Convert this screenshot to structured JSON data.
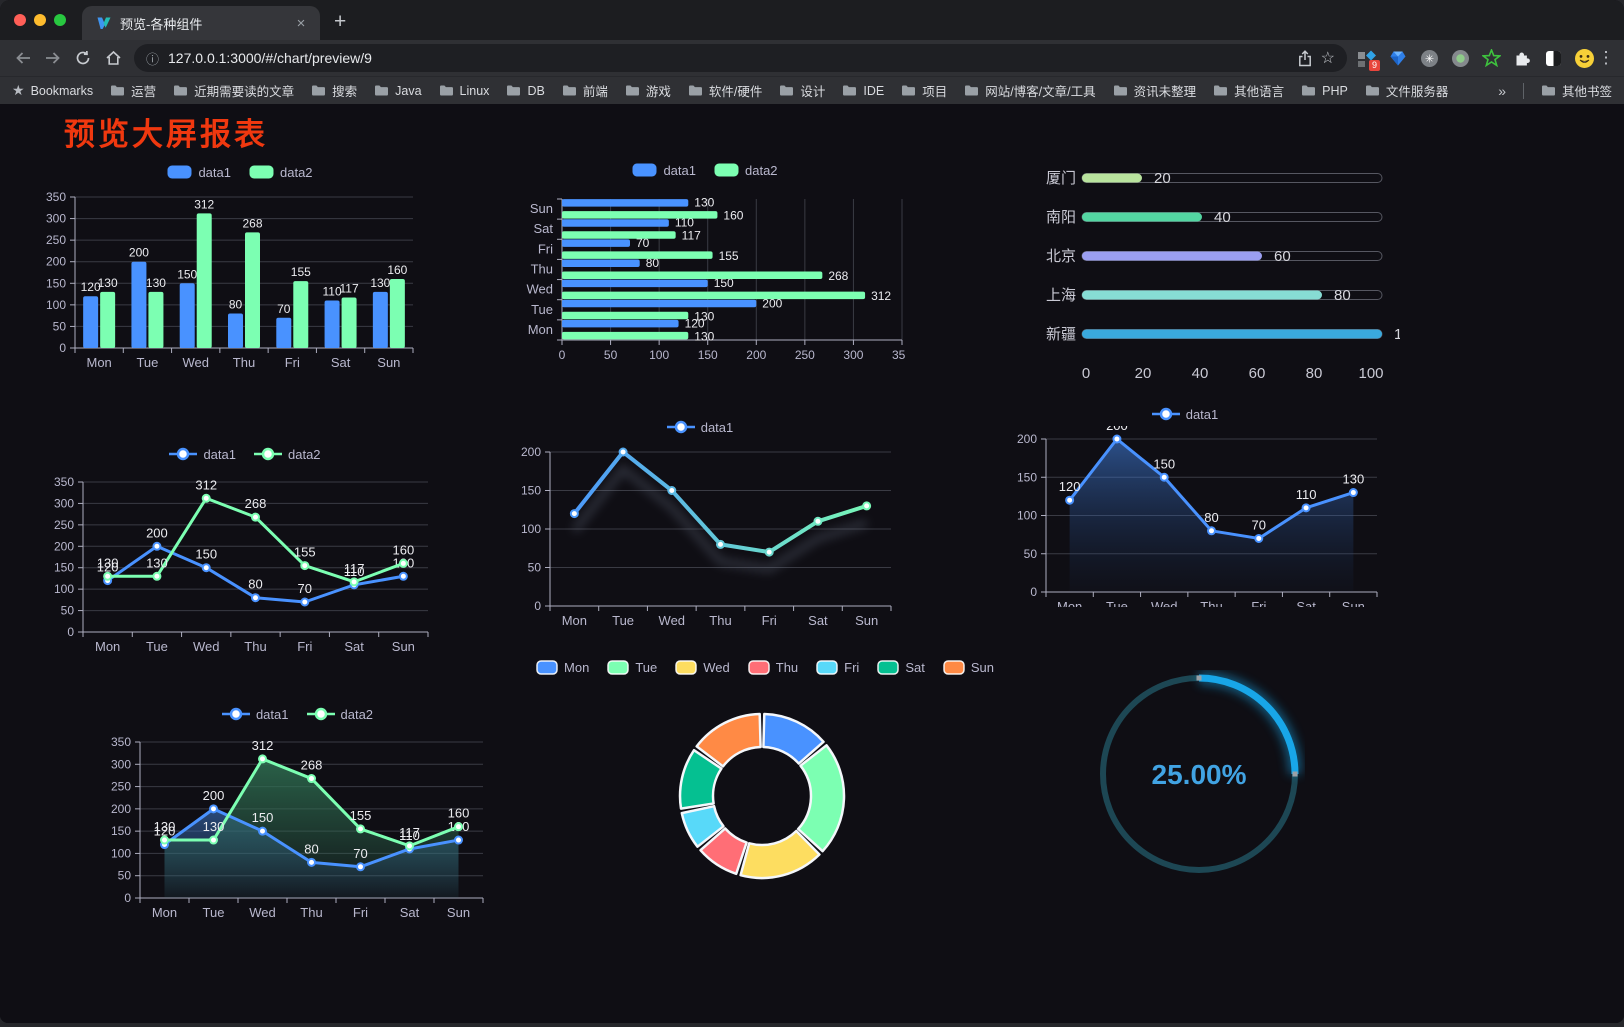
{
  "browser": {
    "traffic_lights": [
      "#ff5f57",
      "#febc2e",
      "#28c840"
    ],
    "tab": {
      "title": "预览-各种组件",
      "close_label": "×",
      "new_tab_label": "+"
    },
    "url": "127.0.0.1:3000/#/chart/preview/9",
    "bookmarks_label": "Bookmarks",
    "bookmarks": [
      "运营",
      "近期需要读的文章",
      "搜索",
      "Java",
      "Linux",
      "DB",
      "前端",
      "游戏",
      "软件/硬件",
      "设计",
      "IDE",
      "项目",
      "网站/博客/文章/工具",
      "资讯未整理",
      "其他语言",
      "PHP",
      "文件服务器"
    ],
    "bookmarks_overflow": "»",
    "other_bookmarks": "其他书签",
    "extensions": [
      {
        "name": "squares-diamond-icon",
        "badge": "9"
      },
      {
        "name": "blue-gem-icon"
      },
      {
        "name": "gray-knot-icon"
      },
      {
        "name": "record-dot-icon"
      },
      {
        "name": "green-star-icon"
      },
      {
        "name": "puzzle-icon"
      },
      {
        "name": "contrast-square-icon"
      },
      {
        "name": "avatar-emoji-icon"
      }
    ]
  },
  "page": {
    "title": "预览大屏报表",
    "title_color": "#f0380f",
    "background": "#0f0e14"
  },
  "chart_data": [
    {
      "id": "bar-vertical",
      "type": "bar",
      "categories": [
        "Mon",
        "Tue",
        "Wed",
        "Thu",
        "Fri",
        "Sat",
        "Sun"
      ],
      "series": [
        {
          "name": "data1",
          "color": "#4992ff",
          "values": [
            120,
            200,
            150,
            80,
            70,
            110,
            130
          ]
        },
        {
          "name": "data2",
          "color": "#7cffb2",
          "values": [
            130,
            130,
            312,
            268,
            155,
            117,
            160
          ]
        }
      ],
      "ylim": [
        0,
        350
      ],
      "ytick_step": 50,
      "value_labels": true,
      "legend_icon": "bar",
      "grid": true
    },
    {
      "id": "bar-horizontal",
      "type": "bar-h",
      "categories": [
        "Mon",
        "Tue",
        "Wed",
        "Thu",
        "Fri",
        "Sat",
        "Sun"
      ],
      "series": [
        {
          "name": "data1",
          "color": "#4992ff",
          "values": [
            120,
            200,
            150,
            80,
            70,
            110,
            130
          ]
        },
        {
          "name": "data2",
          "color": "#7cffb2",
          "values": [
            130,
            130,
            312,
            268,
            155,
            117,
            160
          ]
        }
      ],
      "xlim": [
        0,
        350
      ],
      "xtick_step": 50,
      "value_labels": true,
      "legend_icon": "bar",
      "grid": true
    },
    {
      "id": "progress-bars",
      "type": "progress",
      "rows": [
        {
          "label": "厦门",
          "value": 20,
          "color": "#b9e39e"
        },
        {
          "label": "南阳",
          "value": 40,
          "color": "#53d6a2"
        },
        {
          "label": "北京",
          "value": 60,
          "color": "#9b9ff2"
        },
        {
          "label": "上海",
          "value": 80,
          "color": "#87dcd4"
        },
        {
          "label": "新疆",
          "value": 100,
          "color": "#3aa9dd"
        }
      ],
      "xlim": [
        0,
        100
      ],
      "xticks": [
        0,
        20,
        40,
        60,
        80,
        100
      ]
    },
    {
      "id": "line-basic",
      "type": "line",
      "categories": [
        "Mon",
        "Tue",
        "Wed",
        "Thu",
        "Fri",
        "Sat",
        "Sun"
      ],
      "series": [
        {
          "name": "data1",
          "color": "#4992ff",
          "values": [
            120,
            200,
            150,
            80,
            70,
            110,
            130
          ]
        },
        {
          "name": "data2",
          "color": "#7cffb2",
          "values": [
            130,
            130,
            312,
            268,
            155,
            117,
            160
          ]
        }
      ],
      "ylim": [
        0,
        350
      ],
      "ytick_step": 50,
      "value_labels": true,
      "legend_icon": "line",
      "grid": true
    },
    {
      "id": "line-gradient",
      "type": "line",
      "categories": [
        "Mon",
        "Tue",
        "Wed",
        "Thu",
        "Fri",
        "Sat",
        "Sun"
      ],
      "series": [
        {
          "name": "data1",
          "color": "#4992ff",
          "values": [
            120,
            200,
            150,
            80,
            70,
            110,
            130
          ]
        }
      ],
      "ylim": [
        0,
        200
      ],
      "ytick_step": 50,
      "value_labels": false,
      "line_gradient": [
        "#4992ff",
        "#7cffb2"
      ],
      "shadow": true,
      "legend_icon": "line",
      "grid": true
    },
    {
      "id": "line-area",
      "type": "line",
      "categories": [
        "Mon",
        "Tue",
        "Wed",
        "Thu",
        "Fri",
        "Sat",
        "Sun"
      ],
      "series": [
        {
          "name": "data1",
          "color": "#4992ff",
          "values": [
            120,
            200,
            150,
            80,
            70,
            110,
            130
          ],
          "area": {
            "from": "rgba(73,146,255,0.50)",
            "to": "rgba(30,60,110,0.05)"
          }
        }
      ],
      "ylim": [
        0,
        200
      ],
      "ytick_step": 50,
      "value_labels": true,
      "legend_icon": "line",
      "grid": true
    },
    {
      "id": "line-area-double",
      "type": "line",
      "categories": [
        "Mon",
        "Tue",
        "Wed",
        "Thu",
        "Fri",
        "Sat",
        "Sun"
      ],
      "series": [
        {
          "name": "data1",
          "color": "#4992ff",
          "values": [
            120,
            200,
            150,
            80,
            70,
            110,
            130
          ],
          "area": {
            "from": "rgba(55,105,175,0.65)",
            "to": "rgba(55,105,175,0.05)"
          }
        },
        {
          "name": "data2",
          "color": "#7cffb2",
          "values": [
            130,
            130,
            312,
            268,
            155,
            117,
            160
          ],
          "area": {
            "from": "rgba(47,112,82,0.85)",
            "to": "rgba(47,112,82,0.06)"
          }
        }
      ],
      "ylim": [
        0,
        350
      ],
      "ytick_step": 50,
      "value_labels": true,
      "legend_icon": "line",
      "grid": true
    },
    {
      "id": "donut",
      "type": "pie",
      "items": [
        {
          "label": "Mon",
          "value": 120,
          "color": "#4992ff"
        },
        {
          "label": "Tue",
          "value": 200,
          "color": "#7cffb2"
        },
        {
          "label": "Wed",
          "value": 150,
          "color": "#fddd60"
        },
        {
          "label": "Thu",
          "value": 80,
          "color": "#ff6e76"
        },
        {
          "label": "Fri",
          "value": 70,
          "color": "#58d9f9"
        },
        {
          "label": "Sat",
          "value": 110,
          "color": "#05c091"
        },
        {
          "label": "Sun",
          "value": 130,
          "color": "#ff8a45"
        }
      ],
      "legend_icon": "pie"
    },
    {
      "id": "gauge",
      "type": "gauge",
      "value": 25,
      "label": "25.00%",
      "color": "#18a6e8",
      "track_color": "#1d4754",
      "text_color": "#41a3e3"
    }
  ]
}
